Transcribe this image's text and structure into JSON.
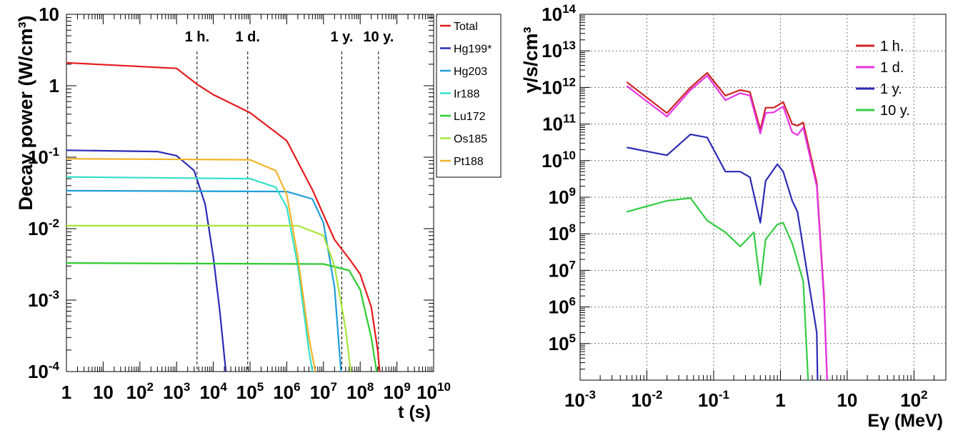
{
  "chart_data": [
    {
      "type": "line",
      "xlabel": "t (s)",
      "ylabel": "Decay power (W/cm³)",
      "x_scale": "log",
      "y_scale": "log",
      "xlim": [
        1,
        10000000000
      ],
      "ylim": [
        0.0001,
        10
      ],
      "grid": false,
      "legend_position": "outside-right-top",
      "x_tick_labels": [
        {
          "v": 1,
          "base": "1",
          "exp": ""
        },
        {
          "v": 10,
          "base": "10",
          "exp": ""
        },
        {
          "v": 100,
          "base": "10",
          "exp": "2"
        },
        {
          "v": 1000,
          "base": "10",
          "exp": "3"
        },
        {
          "v": 10000,
          "base": "10",
          "exp": "4"
        },
        {
          "v": 100000,
          "base": "10",
          "exp": "5"
        },
        {
          "v": 1000000,
          "base": "10",
          "exp": "6"
        },
        {
          "v": 10000000,
          "base": "10",
          "exp": "7"
        },
        {
          "v": 100000000,
          "base": "10",
          "exp": "8"
        },
        {
          "v": 1000000000,
          "base": "10",
          "exp": "9"
        },
        {
          "v": 10000000000,
          "base": "10",
          "exp": "10"
        }
      ],
      "y_tick_labels": [
        {
          "v": 10,
          "base": "10",
          "exp": ""
        },
        {
          "v": 1,
          "base": "1",
          "exp": ""
        },
        {
          "v": 0.1,
          "base": "10",
          "exp": "-1"
        },
        {
          "v": 0.01,
          "base": "10",
          "exp": "-2"
        },
        {
          "v": 0.001,
          "base": "10",
          "exp": "-3"
        },
        {
          "v": 0.0001,
          "base": "10",
          "exp": "-4"
        }
      ],
      "annotations": [
        {
          "label": "1 h.",
          "x": 3600
        },
        {
          "label": "1 d.",
          "x": 86400
        },
        {
          "label": "1 y.",
          "x": 31536000
        },
        {
          "label": "10 y.",
          "x": 315360000
        }
      ],
      "series": [
        {
          "name": "Total",
          "color": "#e41a1c",
          "points": [
            [
              1,
              2.1
            ],
            [
              1000,
              1.75
            ],
            [
              3600,
              1.05
            ],
            [
              10000,
              0.75
            ],
            [
              100000,
              0.42
            ],
            [
              1000000,
              0.17
            ],
            [
              5000000,
              0.035
            ],
            [
              20000000,
              0.007
            ],
            [
              50000000,
              0.0038
            ],
            [
              100000000,
              0.0023
            ],
            [
              200000000,
              0.0008
            ],
            [
              300000000,
              0.0002
            ],
            [
              340000000,
              0.0001
            ]
          ]
        },
        {
          "name": "Hg199*",
          "color": "#2b2bb5",
          "points": [
            [
              1,
              0.125
            ],
            [
              300,
              0.12
            ],
            [
              1000,
              0.105
            ],
            [
              3000,
              0.065
            ],
            [
              6000,
              0.022
            ],
            [
              10000,
              0.004
            ],
            [
              15000,
              0.0007
            ],
            [
              20000,
              0.00016
            ],
            [
              22000,
              0.0001
            ]
          ]
        },
        {
          "name": "Hg203",
          "color": "#1f9ed8",
          "points": [
            [
              1,
              0.034
            ],
            [
              1000000,
              0.033
            ],
            [
              5000000,
              0.026
            ],
            [
              10000000,
              0.012
            ],
            [
              20000000,
              0.0015
            ],
            [
              30000000,
              0.0001
            ]
          ]
        },
        {
          "name": "Ir188",
          "color": "#33e0c8",
          "points": [
            [
              1,
              0.053
            ],
            [
              100000,
              0.05
            ],
            [
              500000,
              0.038
            ],
            [
              1000000,
              0.02
            ],
            [
              2000000,
              0.003
            ],
            [
              4000000,
              0.0002
            ],
            [
              5000000,
              0.0001
            ]
          ]
        },
        {
          "name": "Lu172",
          "color": "#2ecc2e",
          "points": [
            [
              1,
              0.0033
            ],
            [
              10000000,
              0.0032
            ],
            [
              50000000,
              0.0026
            ],
            [
              100000000,
              0.0014
            ],
            [
              200000000,
              0.0003
            ],
            [
              280000000,
              0.0001
            ]
          ]
        },
        {
          "name": "Os185",
          "color": "#a8e63a",
          "points": [
            [
              1,
              0.011
            ],
            [
              2000000,
              0.011
            ],
            [
              10000000,
              0.008
            ],
            [
              20000000,
              0.003
            ],
            [
              40000000,
              0.0004
            ],
            [
              55000000,
              0.0001
            ]
          ]
        },
        {
          "name": "Pt188",
          "color": "#f0b429",
          "points": [
            [
              1,
              0.095
            ],
            [
              100000,
              0.092
            ],
            [
              500000,
              0.065
            ],
            [
              1000000,
              0.03
            ],
            [
              2000000,
              0.004
            ],
            [
              4000000,
              0.0003
            ],
            [
              6000000,
              0.0001
            ]
          ]
        }
      ]
    },
    {
      "type": "line",
      "xlabel": "Eγ (MeV)",
      "ylabel": "γ/s/cm³",
      "x_scale": "log",
      "y_scale": "log",
      "xlim": [
        0.001,
        300
      ],
      "ylim": [
        10000,
        100000000000000
      ],
      "grid": true,
      "legend_position": "top-right",
      "x_tick_labels": [
        {
          "v": 0.001,
          "base": "10",
          "exp": "-3"
        },
        {
          "v": 0.01,
          "base": "10",
          "exp": "-2"
        },
        {
          "v": 0.1,
          "base": "10",
          "exp": "-1"
        },
        {
          "v": 1,
          "base": "1",
          "exp": ""
        },
        {
          "v": 10,
          "base": "10",
          "exp": ""
        },
        {
          "v": 100,
          "base": "10",
          "exp": "2"
        }
      ],
      "y_tick_labels": [
        {
          "v": 100000,
          "base": "10",
          "exp": "5"
        },
        {
          "v": 1000000,
          "base": "10",
          "exp": "6"
        },
        {
          "v": 10000000,
          "base": "10",
          "exp": "7"
        },
        {
          "v": 100000000,
          "base": "10",
          "exp": "8"
        },
        {
          "v": 1000000000,
          "base": "10",
          "exp": "9"
        },
        {
          "v": 10000000000,
          "base": "10",
          "exp": "10"
        },
        {
          "v": 100000000000,
          "base": "10",
          "exp": "11"
        },
        {
          "v": 1000000000000,
          "base": "10",
          "exp": "12"
        },
        {
          "v": 10000000000000,
          "base": "10",
          "exp": "13"
        },
        {
          "v": 100000000000000,
          "base": "10",
          "exp": "14"
        }
      ],
      "series": [
        {
          "name": "1 h.",
          "color": "#cc2222",
          "points": [
            [
              0.005,
              1400000000000.0
            ],
            [
              0.02,
              200000000000.0
            ],
            [
              0.045,
              1000000000000.0
            ],
            [
              0.08,
              2500000000000.0
            ],
            [
              0.15,
              600000000000.0
            ],
            [
              0.25,
              850000000000.0
            ],
            [
              0.35,
              750000000000.0
            ],
            [
              0.5,
              70000000000.0
            ],
            [
              0.6,
              280000000000.0
            ],
            [
              0.8,
              280000000000.0
            ],
            [
              1.1,
              400000000000.0
            ],
            [
              1.5,
              100000000000.0
            ],
            [
              1.8,
              90000000000.0
            ],
            [
              2.2,
              110000000000.0
            ],
            [
              3.5,
              2500000000.0
            ],
            [
              4.5,
              2000000.0
            ],
            [
              5,
              10000
            ]
          ]
        },
        {
          "name": "1 d.",
          "color": "#e633e6",
          "points": [
            [
              0.005,
              1100000000000.0
            ],
            [
              0.02,
              160000000000.0
            ],
            [
              0.045,
              850000000000.0
            ],
            [
              0.08,
              2100000000000.0
            ],
            [
              0.15,
              450000000000.0
            ],
            [
              0.25,
              700000000000.0
            ],
            [
              0.35,
              600000000000.0
            ],
            [
              0.5,
              55000000000.0
            ],
            [
              0.6,
              200000000000.0
            ],
            [
              0.8,
              210000000000.0
            ],
            [
              1.1,
              300000000000.0
            ],
            [
              1.5,
              60000000000.0
            ],
            [
              1.8,
              50000000000.0
            ],
            [
              2.2,
              80000000000.0
            ],
            [
              3.5,
              2000000000.0
            ],
            [
              4.5,
              1500000.0
            ],
            [
              5,
              10000
            ]
          ]
        },
        {
          "name": "1 y.",
          "color": "#2b2bb5",
          "points": [
            [
              0.005,
              23000000000.0
            ],
            [
              0.02,
              14000000000.0
            ],
            [
              0.045,
              52000000000.0
            ],
            [
              0.08,
              43000000000.0
            ],
            [
              0.15,
              5000000000.0
            ],
            [
              0.25,
              5000000000.0
            ],
            [
              0.35,
              3500000000.0
            ],
            [
              0.5,
              200000000.0
            ],
            [
              0.6,
              2800000000.0
            ],
            [
              0.9,
              8000000000.0
            ],
            [
              1.1,
              5000000000.0
            ],
            [
              1.5,
              800000000.0
            ],
            [
              1.8,
              400000000.0
            ],
            [
              2.2,
              40000000.0
            ],
            [
              3.5,
              200000.0
            ],
            [
              3.6,
              10000
            ]
          ]
        },
        {
          "name": "10 y.",
          "color": "#33cc44",
          "points": [
            [
              0.005,
              400000000.0
            ],
            [
              0.02,
              800000000.0
            ],
            [
              0.045,
              950000000.0
            ],
            [
              0.08,
              230000000.0
            ],
            [
              0.15,
              110000000.0
            ],
            [
              0.25,
              45000000.0
            ],
            [
              0.4,
              110000000.0
            ],
            [
              0.5,
              4000000.0
            ],
            [
              0.6,
              70000000.0
            ],
            [
              0.9,
              180000000.0
            ],
            [
              1.1,
              200000000.0
            ],
            [
              1.5,
              55000000.0
            ],
            [
              2.2,
              5000000.0
            ],
            [
              2.6,
              10000
            ]
          ]
        }
      ]
    }
  ]
}
